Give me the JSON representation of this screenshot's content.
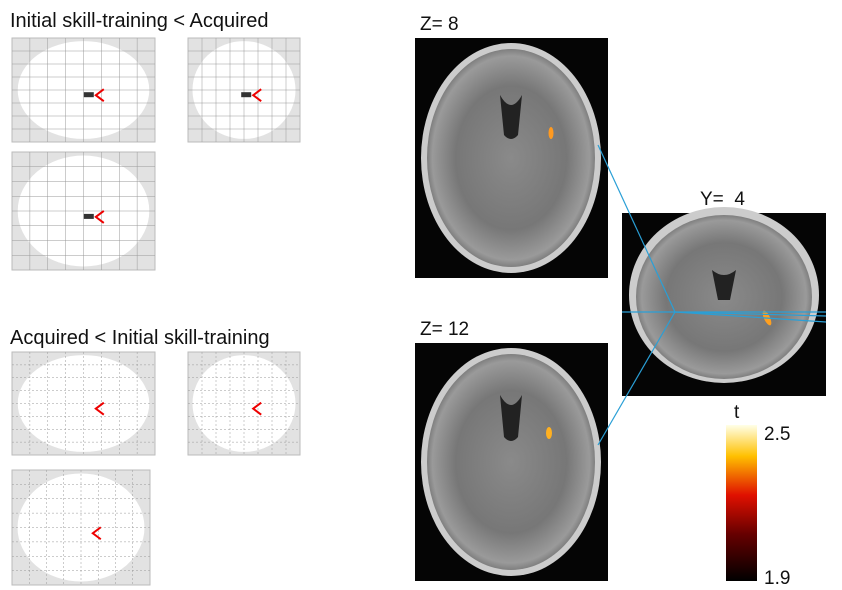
{
  "panels": [
    {
      "title": "Initial skill-training < Acquired"
    },
    {
      "title": "Acquired < Initial skill-training"
    }
  ],
  "slices": [
    {
      "label": "Z= 8"
    },
    {
      "label": "Z= 12"
    },
    {
      "label": "Y=  4"
    }
  ],
  "colorbar": {
    "label": "t",
    "max": 2.5,
    "min": 1.9
  }
}
